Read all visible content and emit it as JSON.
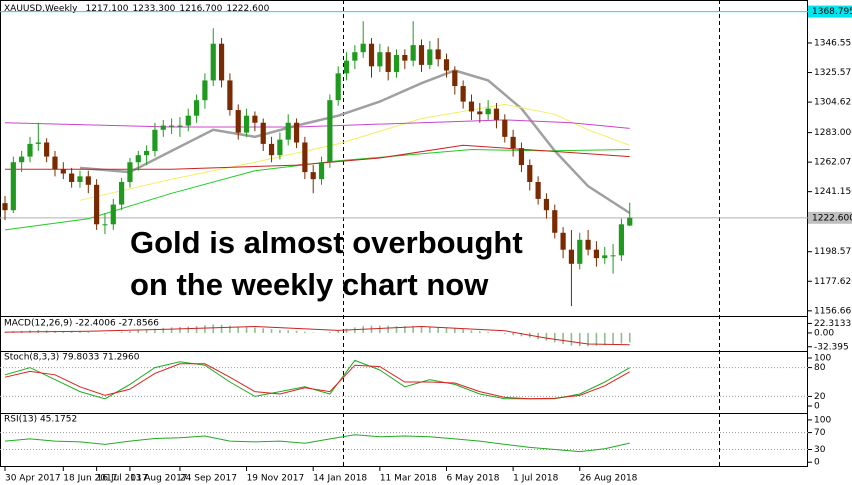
{
  "chart_data": {
    "type": "candlestick",
    "title": "XAUUSD,Weekly",
    "header_values": [
      "1217.100",
      "1233.300",
      "1216.700",
      "1222.600"
    ],
    "annotation": [
      "Gold is almost overbought",
      "on the weekly chart now"
    ],
    "annotation_color": "#e8202a",
    "up_color": "#1f9a1f",
    "down_color": "#7a2a00",
    "xlim": [
      -0.6,
      96.4
    ],
    "xticks": [
      {
        "value": 0,
        "label": "30 Apr 2017"
      },
      {
        "value": 7,
        "label": "18 Jun 2017"
      },
      {
        "value": 11,
        "label": "16 Jul 2017"
      },
      {
        "value": 15,
        "label": "13 Aug 2017"
      },
      {
        "value": 21,
        "label": "24 Sep 2017"
      },
      {
        "value": 29,
        "label": "19 Nov 2017"
      },
      {
        "value": 37,
        "label": "14 Jan 2018"
      },
      {
        "value": 45,
        "label": "11 Mar 2018"
      },
      {
        "value": 53,
        "label": "6 May 2018"
      },
      {
        "value": 61,
        "label": "1 Jul 2018"
      },
      {
        "value": 69,
        "label": "26 Aug 2018"
      }
    ],
    "ylim": [
      1153,
      1377
    ],
    "yticks": [
      1346.555,
      1325.575,
      1304.625,
      {
        "value": 1283,
        "label": "1283.000"
      },
      1262.075,
      {
        "value": 1241.15,
        "label": "1241.150"
      },
      1198.575,
      {
        "value": 1177.62,
        "label": "1177.620"
      },
      1156.665
    ],
    "price_line": {
      "value": 1222.6,
      "label": "1222.600"
    },
    "level_line": {
      "value": 1368.795,
      "label": "1368.795",
      "color": "#00e5ee"
    },
    "candles": [
      [
        1233,
        1238,
        1221,
        1228
      ],
      [
        1228,
        1266,
        1226,
        1262
      ],
      [
        1262,
        1270,
        1255,
        1266
      ],
      [
        1266,
        1280,
        1262,
        1275
      ],
      [
        1275,
        1290,
        1270,
        1276
      ],
      [
        1276,
        1279,
        1262,
        1266
      ],
      [
        1266,
        1270,
        1252,
        1257
      ],
      [
        1257,
        1262,
        1250,
        1254
      ],
      [
        1254,
        1258,
        1244,
        1248
      ],
      [
        1248,
        1256,
        1244,
        1252
      ],
      [
        1252,
        1256,
        1240,
        1246
      ],
      [
        1246,
        1250,
        1214,
        1218
      ],
      [
        1218,
        1226,
        1211,
        1218
      ],
      [
        1218,
        1236,
        1214,
        1232
      ],
      [
        1232,
        1251,
        1228,
        1248
      ],
      [
        1248,
        1265,
        1244,
        1262
      ],
      [
        1262,
        1270,
        1256,
        1267
      ],
      [
        1267,
        1274,
        1260,
        1270
      ],
      [
        1270,
        1290,
        1266,
        1285
      ],
      [
        1285,
        1292,
        1280,
        1288
      ],
      [
        1288,
        1293,
        1282,
        1288
      ],
      [
        1288,
        1294,
        1280,
        1288
      ],
      [
        1288,
        1300,
        1284,
        1295
      ],
      [
        1295,
        1310,
        1290,
        1306
      ],
      [
        1306,
        1325,
        1300,
        1320
      ],
      [
        1320,
        1357,
        1316,
        1346
      ],
      [
        1346,
        1350,
        1315,
        1320
      ],
      [
        1320,
        1325,
        1295,
        1299
      ],
      [
        1299,
        1303,
        1278,
        1283
      ],
      [
        1283,
        1300,
        1280,
        1295
      ],
      [
        1295,
        1298,
        1284,
        1290
      ],
      [
        1290,
        1293,
        1270,
        1275
      ],
      [
        1275,
        1280,
        1262,
        1267
      ],
      [
        1267,
        1283,
        1264,
        1278
      ],
      [
        1278,
        1296,
        1274,
        1290
      ],
      [
        1290,
        1293,
        1272,
        1276
      ],
      [
        1276,
        1280,
        1250,
        1255
      ],
      [
        1255,
        1260,
        1240,
        1250
      ],
      [
        1250,
        1266,
        1246,
        1262
      ],
      [
        1262,
        1310,
        1258,
        1306
      ],
      [
        1306,
        1330,
        1302,
        1325
      ],
      [
        1325,
        1340,
        1320,
        1334
      ],
      [
        1334,
        1345,
        1328,
        1340
      ],
      [
        1340,
        1362,
        1336,
        1346
      ],
      [
        1346,
        1350,
        1322,
        1330
      ],
      [
        1330,
        1346,
        1326,
        1340
      ],
      [
        1340,
        1344,
        1320,
        1326
      ],
      [
        1326,
        1342,
        1322,
        1338
      ],
      [
        1338,
        1342,
        1328,
        1334
      ],
      [
        1334,
        1362,
        1330,
        1345
      ],
      [
        1345,
        1349,
        1326,
        1331
      ],
      [
        1331,
        1348,
        1328,
        1342
      ],
      [
        1342,
        1350,
        1330,
        1335
      ],
      [
        1335,
        1339,
        1322,
        1327
      ],
      [
        1327,
        1330,
        1310,
        1316
      ],
      [
        1316,
        1320,
        1300,
        1305
      ],
      [
        1305,
        1310,
        1292,
        1298
      ],
      [
        1298,
        1304,
        1290,
        1296
      ],
      [
        1296,
        1306,
        1292,
        1300
      ],
      [
        1300,
        1304,
        1286,
        1292
      ],
      [
        1292,
        1296,
        1276,
        1280
      ],
      [
        1280,
        1285,
        1266,
        1272
      ],
      [
        1272,
        1276,
        1255,
        1260
      ],
      [
        1260,
        1264,
        1242,
        1248
      ],
      [
        1248,
        1252,
        1232,
        1236
      ],
      [
        1236,
        1240,
        1222,
        1228
      ],
      [
        1228,
        1232,
        1208,
        1212
      ],
      [
        1212,
        1216,
        1194,
        1200
      ],
      [
        1200,
        1214,
        1160,
        1190
      ],
      [
        1190,
        1212,
        1186,
        1207
      ],
      [
        1207,
        1214,
        1196,
        1200
      ],
      [
        1200,
        1206,
        1188,
        1194
      ],
      [
        1194,
        1202,
        1190,
        1196
      ],
      [
        1196,
        1204,
        1183,
        1196
      ],
      [
        1196,
        1222,
        1192,
        1218
      ],
      [
        1217.1,
        1233.3,
        1216.7,
        1222.6
      ]
    ],
    "moving_averages": [
      {
        "color": "#a0a0a0",
        "width": 2.5,
        "x": [
          9,
          15,
          20,
          25,
          30,
          35,
          40,
          45,
          50,
          54,
          58,
          62,
          66,
          70,
          75
        ],
        "values": [
          1258,
          1255,
          1270,
          1285,
          1280,
          1288,
          1295,
          1305,
          1318,
          1327,
          1320,
          1300,
          1270,
          1245,
          1226
        ]
      },
      {
        "color": "#f0f060",
        "width": 1,
        "x": [
          9,
          20,
          30,
          40,
          50,
          60,
          66,
          70,
          75
        ],
        "values": [
          1235,
          1250,
          1262,
          1275,
          1293,
          1303,
          1296,
          1285,
          1274
        ]
      },
      {
        "color": "#22cc22",
        "width": 1,
        "x": [
          0,
          10,
          20,
          30,
          40,
          50,
          56,
          65,
          75
        ],
        "values": [
          1214,
          1222,
          1240,
          1256,
          1263,
          1268,
          1271,
          1270,
          1271
        ]
      },
      {
        "color": "#cc2222",
        "width": 1,
        "x": [
          0,
          20,
          35,
          45,
          55,
          65,
          75
        ],
        "values": [
          1257,
          1257,
          1260,
          1265,
          1274,
          1270,
          1266
        ]
      },
      {
        "color": "#cc44cc",
        "width": 1,
        "x": [
          0,
          20,
          35,
          50,
          60,
          68,
          75
        ],
        "values": [
          1290,
          1287,
          1287,
          1290,
          1292,
          1290,
          1286
        ]
      }
    ],
    "indicators": [
      {
        "label": "MACD(12,26,9) -22.4006 -27.8566",
        "ylim": [
          -40,
          35
        ],
        "yticks": [
          22.3133,
          {
            "value": 0,
            "label": "0.00"
          },
          -32.395
        ],
        "histogram": {
          "color": "#8fbc8f",
          "values": [
            2,
            4,
            5,
            6,
            7,
            6,
            5,
            4,
            3,
            3,
            2,
            0,
            -1,
            0,
            2,
            4,
            6,
            8,
            10,
            12,
            13,
            14,
            15,
            16,
            18,
            20,
            19,
            17,
            15,
            14,
            13,
            11,
            9,
            7,
            6,
            5,
            3,
            1,
            0,
            2,
            6,
            10,
            13,
            16,
            17,
            17,
            17,
            16,
            16,
            16,
            15,
            15,
            14,
            13,
            11,
            9,
            6,
            4,
            2,
            0,
            -2,
            -5,
            -8,
            -11,
            -15,
            -18,
            -22,
            -26,
            -30,
            -31,
            -31,
            -30,
            -29,
            -28,
            -25,
            -22.4006
          ]
        },
        "series": [
          {
            "color": "#cc2222",
            "x": [
              0,
              10,
              20,
              30,
              40,
              50,
              60,
              65,
              70,
              75
            ],
            "values": [
              2,
              4,
              9,
              15,
              6,
              15,
              5,
              -12,
              -26,
              -27.8566
            ]
          }
        ]
      },
      {
        "label": "Stoch(8,3,3) 79.8033 71.2960",
        "ylim": [
          -12.5,
          112.5
        ],
        "yticks": [
          100,
          80,
          20,
          0
        ],
        "levels": [
          80,
          20
        ],
        "series": [
          {
            "color": "#22aa22",
            "x": [
              0,
              3,
              6,
              9,
              12,
              15,
              18,
              21,
              24,
              27,
              30,
              33,
              36,
              39,
              42,
              45,
              48,
              51,
              54,
              57,
              60,
              63,
              66,
              69,
              72,
              75
            ],
            "values": [
              65,
              80,
              55,
              30,
              15,
              45,
              80,
              92,
              85,
              50,
              20,
              30,
              40,
              25,
              95,
              75,
              40,
              55,
              45,
              25,
              15,
              15,
              15,
              25,
              50,
              79.8033
            ]
          },
          {
            "color": "#dd2222",
            "x": [
              0,
              3,
              6,
              9,
              12,
              15,
              18,
              21,
              24,
              27,
              30,
              33,
              36,
              39,
              42,
              45,
              48,
              51,
              54,
              57,
              60,
              63,
              66,
              69,
              72,
              75
            ],
            "values": [
              60,
              72,
              65,
              40,
              22,
              35,
              68,
              88,
              88,
              60,
              30,
              25,
              38,
              30,
              85,
              82,
              50,
              50,
              48,
              30,
              18,
              15,
              16,
              22,
              42,
              71.296
            ]
          }
        ]
      },
      {
        "label": "RSI(13) 45.1752",
        "ylim": [
          -9,
          114
        ],
        "yticks": [
          100,
          70,
          30,
          0
        ],
        "levels": [
          70,
          30
        ],
        "series": [
          {
            "color": "#22aa22",
            "x": [
              0,
              3,
              6,
              9,
              12,
              15,
              18,
              21,
              24,
              27,
              30,
              33,
              36,
              39,
              42,
              45,
              48,
              51,
              54,
              57,
              60,
              63,
              66,
              69,
              72,
              75
            ],
            "values": [
              50,
              55,
              50,
              48,
              42,
              50,
              56,
              58,
              62,
              50,
              48,
              50,
              45,
              55,
              65,
              60,
              62,
              60,
              55,
              50,
              42,
              35,
              30,
              25,
              32,
              45.1752
            ]
          }
        ]
      }
    ]
  }
}
